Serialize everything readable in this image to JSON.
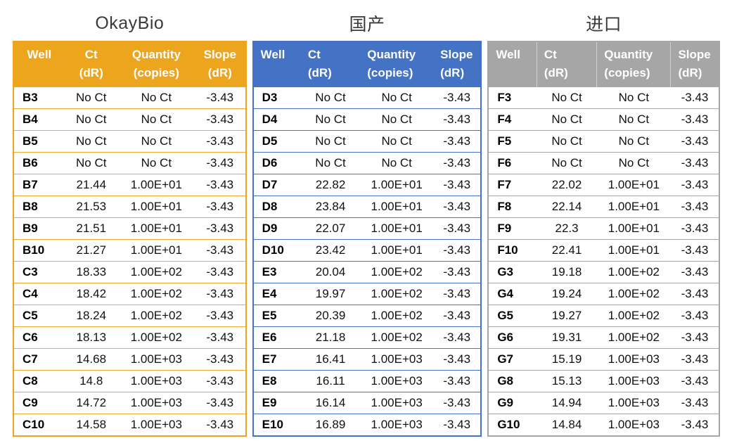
{
  "page": {
    "background": "#ffffff"
  },
  "tables": [
    {
      "title": "OkayBio",
      "theme": "gold",
      "accent_color": "#EEA51E",
      "header_text_color": "#ffffff",
      "header": [
        {
          "line1": "Well",
          "line2": ""
        },
        {
          "line1": "Ct",
          "line2": "(dR)"
        },
        {
          "line1": "Quantity",
          "line2": "(copies)"
        },
        {
          "line1": "Slope",
          "line2": "(dR)"
        }
      ],
      "rows": [
        [
          "B3",
          "No Ct",
          "No Ct",
          "-3.43"
        ],
        [
          "B4",
          "No Ct",
          "No Ct",
          "-3.43"
        ],
        [
          "B5",
          "No Ct",
          "No Ct",
          "-3.43"
        ],
        [
          "B6",
          "No Ct",
          "No Ct",
          "-3.43"
        ],
        [
          "B7",
          "21.44",
          "1.00E+01",
          "-3.43"
        ],
        [
          "B8",
          "21.53",
          "1.00E+01",
          "-3.43"
        ],
        [
          "B9",
          "21.51",
          "1.00E+01",
          "-3.43"
        ],
        [
          "B10",
          "21.27",
          "1.00E+01",
          "-3.43"
        ],
        [
          "C3",
          "18.33",
          "1.00E+02",
          "-3.43"
        ],
        [
          "C4",
          "18.42",
          "1.00E+02",
          "-3.43"
        ],
        [
          "C5",
          "18.24",
          "1.00E+02",
          "-3.43"
        ],
        [
          "C6",
          "18.13",
          "1.00E+02",
          "-3.43"
        ],
        [
          "C7",
          "14.68",
          "1.00E+03",
          "-3.43"
        ],
        [
          "C8",
          "14.8",
          "1.00E+03",
          "-3.43"
        ],
        [
          "C9",
          "14.72",
          "1.00E+03",
          "-3.43"
        ],
        [
          "C10",
          "14.58",
          "1.00E+03",
          "-3.43"
        ]
      ]
    },
    {
      "title": "国产",
      "theme": "blue",
      "accent_color": "#4472C4",
      "header_text_color": "#ffffff",
      "header": [
        {
          "line1": "Well",
          "line2": ""
        },
        {
          "line1": "Ct",
          "line2": "(dR)"
        },
        {
          "line1": "Quantity",
          "line2": "(copies)"
        },
        {
          "line1": "Slope",
          "line2": "(dR)"
        }
      ],
      "rows": [
        [
          "D3",
          "No Ct",
          "No Ct",
          "-3.43"
        ],
        [
          "D4",
          "No Ct",
          "No Ct",
          "-3.43"
        ],
        [
          "D5",
          "No Ct",
          "No Ct",
          "-3.43"
        ],
        [
          "D6",
          "No Ct",
          "No Ct",
          "-3.43"
        ],
        [
          "D7",
          "22.82",
          "1.00E+01",
          "-3.43"
        ],
        [
          "D8",
          "23.84",
          "1.00E+01",
          "-3.43"
        ],
        [
          "D9",
          "22.07",
          "1.00E+01",
          "-3.43"
        ],
        [
          "D10",
          "23.42",
          "1.00E+01",
          "-3.43"
        ],
        [
          "E3",
          "20.04",
          "1.00E+02",
          "-3.43"
        ],
        [
          "E4",
          "19.97",
          "1.00E+02",
          "-3.43"
        ],
        [
          "E5",
          "20.39",
          "1.00E+02",
          "-3.43"
        ],
        [
          "E6",
          "21.18",
          "1.00E+02",
          "-3.43"
        ],
        [
          "E7",
          "16.41",
          "1.00E+03",
          "-3.43"
        ],
        [
          "E8",
          "16.11",
          "1.00E+03",
          "-3.43"
        ],
        [
          "E9",
          "16.14",
          "1.00E+03",
          "-3.43"
        ],
        [
          "E10",
          "16.89",
          "1.00E+03",
          "-3.43"
        ]
      ]
    },
    {
      "title": "进口",
      "theme": "gray",
      "accent_color": "#A6A6A6",
      "header_text_color": "#ffffff",
      "header": [
        {
          "line1": "Well",
          "line2": ""
        },
        {
          "line1": "Ct",
          "line2": "(dR)"
        },
        {
          "line1": "Quantity",
          "line2": "(copies)"
        },
        {
          "line1": "Slope",
          "line2": "(dR)"
        }
      ],
      "rows": [
        [
          "F3",
          "No Ct",
          "No Ct",
          "-3.43"
        ],
        [
          "F4",
          "No Ct",
          "No Ct",
          "-3.43"
        ],
        [
          "F5",
          "No Ct",
          "No Ct",
          "-3.43"
        ],
        [
          "F6",
          "No Ct",
          "No Ct",
          "-3.43"
        ],
        [
          "F7",
          "22.02",
          "1.00E+01",
          "-3.43"
        ],
        [
          "F8",
          "22.14",
          "1.00E+01",
          "-3.43"
        ],
        [
          "F9",
          "22.3",
          "1.00E+01",
          "-3.43"
        ],
        [
          "F10",
          "22.41",
          "1.00E+01",
          "-3.43"
        ],
        [
          "G3",
          "19.18",
          "1.00E+02",
          "-3.43"
        ],
        [
          "G4",
          "19.24",
          "1.00E+02",
          "-3.43"
        ],
        [
          "G5",
          "19.27",
          "1.00E+02",
          "-3.43"
        ],
        [
          "G6",
          "19.31",
          "1.00E+02",
          "-3.43"
        ],
        [
          "G7",
          "15.19",
          "1.00E+03",
          "-3.43"
        ],
        [
          "G8",
          "15.13",
          "1.00E+03",
          "-3.43"
        ],
        [
          "G9",
          "14.94",
          "1.00E+03",
          "-3.43"
        ],
        [
          "G10",
          "14.84",
          "1.00E+03",
          "-3.43"
        ]
      ]
    }
  ]
}
